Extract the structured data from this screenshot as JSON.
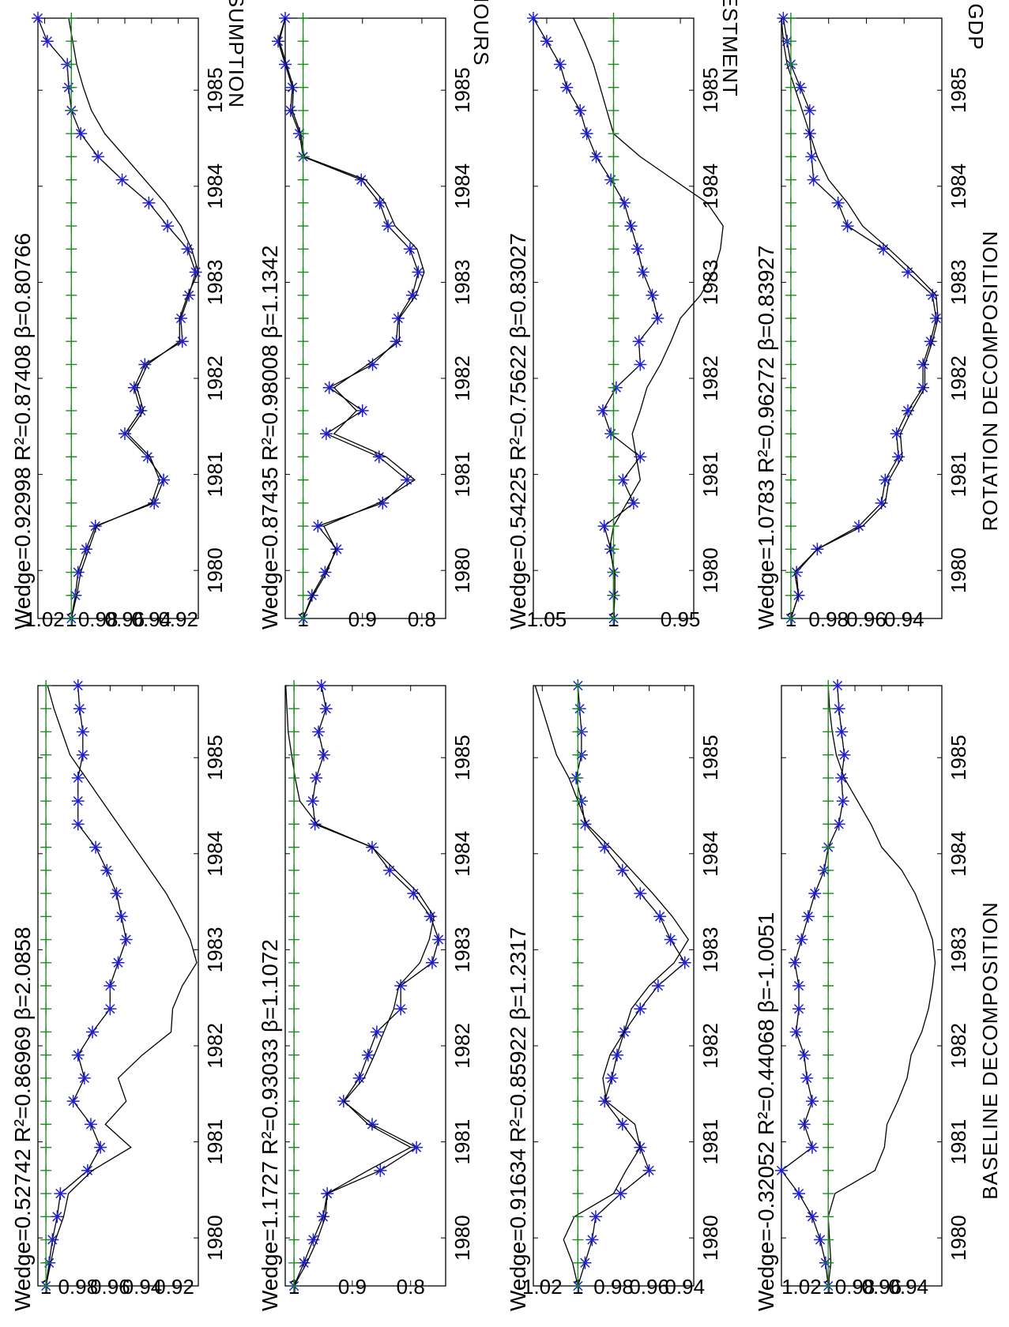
{
  "charts": {
    "baseline": {
      "xlabel": "BASELINE DECOMPOSITION",
      "panels": [
        {
          "ylabel": "GDP",
          "wedge": "0.52742",
          "r2": "0.86969",
          "beta": "2.0858"
        },
        {
          "ylabel": "INVESTMENT",
          "wedge": "1.1727",
          "r2": "0.93033",
          "beta": "1.1072"
        },
        {
          "ylabel": "HOURS",
          "wedge": "0.91634",
          "r2": "0.85922",
          "beta": "1.2317"
        },
        {
          "ylabel": "CONSUMPTION",
          "wedge": "-0.32052",
          "r2": "0.44068",
          "beta": "-1.0051"
        }
      ]
    },
    "rotation": {
      "xlabel": "ROTATION DECOMPOSITION",
      "panels": [
        {
          "wedge": "0.92998",
          "r2": "0.87408",
          "beta": "0.80766"
        },
        {
          "wedge": "0.87435",
          "r2": "0.98008",
          "beta": "1.1342"
        },
        {
          "wedge": "0.54225",
          "r2": "0.75622",
          "beta": "0.83027"
        },
        {
          "wedge": "1.0783",
          "r2": "0.96272",
          "beta": "0.83927"
        }
      ]
    }
  },
  "chart_data": [
    {
      "type": "line",
      "ylabel": "GDP",
      "xlabel": "BASELINE DECOMPOSITION",
      "x_ticks": [
        "1980",
        "1981",
        "1982",
        "1983",
        "1984",
        "1985"
      ],
      "xlim": [
        1979.5,
        1985.75
      ],
      "y_ticks": [
        "1",
        "0.98",
        "0.96",
        "0.94",
        "0.92"
      ],
      "ylim": [
        0.905,
        1.005
      ],
      "series": [
        {
          "style": "star-line",
          "values": [
            1,
            0.998,
            0.996,
            0.993,
            0.991,
            0.974,
            0.966,
            0.972,
            0.983,
            0.976,
            0.98,
            0.971,
            0.96,
            0.96,
            0.955,
            0.95,
            0.953,
            0.956,
            0.962,
            0.969,
            0.98,
            0.98,
            0.98,
            0.977,
            0.977,
            0.979,
            0.98
          ]
        },
        {
          "style": "line",
          "values": [
            1,
            0.997,
            0.994,
            0.989,
            0.986,
            0.971,
            0.947,
            0.963,
            0.95,
            0.955,
            0.94,
            0.922,
            0.921,
            0.915,
            0.906,
            0.91,
            0.917,
            0.925,
            0.935,
            0.945,
            0.955,
            0.965,
            0.975,
            0.985,
            0.99,
            0.995,
            0.999
          ]
        },
        {
          "style": "green-plus",
          "values": [
            1,
            1,
            1,
            1,
            1,
            1,
            1,
            1,
            1,
            1,
            1,
            1,
            1,
            1,
            1,
            1,
            1,
            1,
            1,
            1,
            1,
            1,
            1,
            1,
            1,
            1,
            1
          ]
        }
      ]
    },
    {
      "type": "line",
      "ylabel": "INVESTMENT",
      "xlabel": "BASELINE DECOMPOSITION",
      "x_ticks": [
        "1980",
        "1981",
        "1982",
        "1983",
        "1984",
        "1985"
      ],
      "xlim": [
        1979.5,
        1985.75
      ],
      "y_ticks": [
        "1",
        "0.9",
        "0.8"
      ],
      "ylim": [
        0.74,
        1.015
      ],
      "series": [
        {
          "style": "star-line",
          "values": [
            1,
            0.983,
            0.967,
            0.95,
            0.943,
            0.852,
            0.79,
            0.866,
            0.915,
            0.888,
            0.873,
            0.858,
            0.817,
            0.817,
            0.763,
            0.752,
            0.766,
            0.795,
            0.836,
            0.866,
            0.964,
            0.968,
            0.962,
            0.949,
            0.958,
            0.945,
            0.953
          ]
        },
        {
          "style": "line",
          "values": [
            1,
            0.978,
            0.96,
            0.946,
            0.943,
            0.873,
            0.8,
            0.873,
            0.914,
            0.88,
            0.862,
            0.846,
            0.829,
            0.82,
            0.784,
            0.768,
            0.76,
            0.786,
            0.826,
            0.866,
            0.96,
            0.99,
            0.998,
            1.004,
            1.01,
            1.012,
            1.014
          ]
        },
        {
          "style": "green-plus",
          "values": [
            1,
            1,
            1,
            1,
            1,
            1,
            1,
            1,
            1,
            1,
            1,
            1,
            1,
            1,
            1,
            1,
            1,
            1,
            1,
            1,
            1,
            1,
            1,
            1,
            1,
            1,
            1
          ]
        }
      ]
    },
    {
      "type": "line",
      "ylabel": "HOURS",
      "xlabel": "BASELINE DECOMPOSITION",
      "x_ticks": [
        "1980",
        "1981",
        "1982",
        "1983",
        "1984",
        "1985"
      ],
      "xlim": [
        1979.5,
        1985.75
      ],
      "y_ticks": [
        "1.02",
        "1",
        "0.98",
        "0.96",
        "0.94"
      ],
      "ylim": [
        0.935,
        1.025
      ],
      "series": [
        {
          "style": "star-line",
          "values": [
            1,
            0.996,
            0.992,
            0.99,
            0.976,
            0.96,
            0.965,
            0.975,
            0.985,
            0.981,
            0.978,
            0.974,
            0.965,
            0.955,
            0.94,
            0.948,
            0.954,
            0.965,
            0.975,
            0.985,
            0.996,
            0.998,
            1.001,
            0.998,
            0.998,
            0.999,
            1.0
          ]
        },
        {
          "style": "line",
          "values": [
            1,
            1.003,
            1.008,
            1.002,
            0.98,
            0.973,
            0.965,
            0.968,
            0.984,
            0.986,
            0.982,
            0.974,
            0.97,
            0.96,
            0.946,
            0.938,
            0.947,
            0.958,
            0.97,
            0.982,
            0.995,
            1.0,
            1.005,
            1.012,
            1.016,
            1.02,
            1.024
          ]
        },
        {
          "style": "green-plus",
          "values": [
            1,
            1,
            1,
            1,
            1,
            1,
            1,
            1,
            1,
            1,
            1,
            1,
            1,
            1,
            1,
            1,
            1,
            1,
            1,
            1,
            1,
            1,
            1,
            1,
            1,
            1,
            1
          ]
        }
      ]
    },
    {
      "type": "line",
      "ylabel": "CONSUMPTION",
      "xlabel": "BASELINE DECOMPOSITION",
      "x_ticks": [
        "1980",
        "1981",
        "1982",
        "1983",
        "1984",
        "1985"
      ],
      "xlim": [
        1979.5,
        1985.75
      ],
      "y_ticks": [
        "1.02",
        "1",
        "0.98",
        "0.96",
        "0.94"
      ],
      "ylim": [
        0.915,
        1.035
      ],
      "series": [
        {
          "style": "star-line",
          "values": [
            1,
            1.002,
            1.006,
            1.012,
            1.022,
            1.035,
            1.012,
            1.018,
            1.012,
            1.016,
            1.018,
            1.024,
            1.022,
            1.022,
            1.025,
            1.02,
            1.015,
            1.01,
            1.003,
            1.0,
            0.992,
            0.989,
            0.99,
            0.988,
            0.99,
            0.992,
            0.993
          ]
        },
        {
          "style": "line",
          "values": [
            1,
            0.998,
            0.999,
            1.0,
            0.995,
            0.965,
            0.958,
            0.956,
            0.948,
            0.941,
            0.938,
            0.93,
            0.925,
            0.922,
            0.92,
            0.922,
            0.928,
            0.935,
            0.945,
            0.96,
            0.968,
            0.978,
            0.988,
            0.994,
            0.997,
            0.999,
            1.0
          ]
        },
        {
          "style": "green-plus",
          "values": [
            1,
            1,
            1,
            1,
            1,
            1,
            1,
            1,
            1,
            1,
            1,
            1,
            1,
            1,
            1,
            1,
            1,
            1,
            1,
            1,
            1,
            1,
            1,
            1,
            1,
            1,
            1
          ]
        }
      ]
    },
    {
      "type": "line",
      "ylabel": "GDP",
      "xlabel": "ROTATION DECOMPOSITION",
      "x_ticks": [
        "1980",
        "1981",
        "1982",
        "1983",
        "1984",
        "1985"
      ],
      "xlim": [
        1979.5,
        1985.75
      ],
      "y_ticks": [
        "1.02",
        "1",
        "0.98",
        "0.96",
        "0.94",
        "0.92"
      ],
      "ylim": [
        0.905,
        1.025
      ],
      "series": [
        {
          "style": "star-line",
          "values": [
            1,
            0.997,
            0.995,
            0.989,
            0.982,
            0.938,
            0.931,
            0.943,
            0.96,
            0.948,
            0.953,
            0.945,
            0.917,
            0.918,
            0.912,
            0.907,
            0.913,
            0.928,
            0.942,
            0.962,
            0.98,
            0.993,
            1.0,
            1.002,
            1.003,
            1.018,
            1.025
          ]
        },
        {
          "style": "line",
          "values": [
            1,
            0.996,
            0.993,
            0.987,
            0.981,
            0.94,
            0.934,
            0.941,
            0.958,
            0.946,
            0.951,
            0.943,
            0.919,
            0.919,
            0.913,
            0.905,
            0.91,
            0.918,
            0.93,
            0.945,
            0.96,
            0.975,
            0.985,
            0.991,
            0.996,
            0.999,
            1.002
          ]
        },
        {
          "style": "green-plus",
          "values": [
            1,
            1,
            1,
            1,
            1,
            1,
            1,
            1,
            1,
            1,
            1,
            1,
            1,
            1,
            1,
            1,
            1,
            1,
            1,
            1,
            1,
            1,
            1,
            1,
            1,
            1,
            1
          ]
        }
      ]
    },
    {
      "type": "line",
      "ylabel": "INVESTMENT",
      "xlabel": "ROTATION DECOMPOSITION",
      "x_ticks": [
        "1980",
        "1981",
        "1982",
        "1983",
        "1984",
        "1985"
      ],
      "xlim": [
        1979.5,
        1985.75
      ],
      "y_ticks": [
        "1",
        "0.9",
        "0.8"
      ],
      "ylim": [
        0.76,
        1.03
      ],
      "series": [
        {
          "style": "star-line",
          "values": [
            1,
            0.985,
            0.963,
            0.943,
            0.975,
            0.866,
            0.825,
            0.872,
            0.961,
            0.9,
            0.956,
            0.883,
            0.843,
            0.84,
            0.816,
            0.806,
            0.82,
            0.857,
            0.871,
            0.902,
            1.0,
            1.006,
            1.021,
            1.018,
            1.03,
            1.042,
            1.03
          ]
        },
        {
          "style": "line",
          "values": [
            1,
            0.983,
            0.96,
            0.945,
            0.965,
            0.873,
            0.812,
            0.86,
            0.948,
            0.91,
            0.948,
            0.891,
            0.838,
            0.838,
            0.81,
            0.796,
            0.808,
            0.845,
            0.862,
            0.895,
            0.998,
            1.004,
            1.018,
            1.016,
            1.028,
            1.04,
            1.03
          ]
        },
        {
          "style": "green-plus",
          "values": [
            1,
            1,
            1,
            1,
            1,
            1,
            1,
            1,
            1,
            1,
            1,
            1,
            1,
            1,
            1,
            1,
            1,
            1,
            1,
            1,
            1,
            1,
            1,
            1,
            1,
            1,
            1
          ]
        }
      ]
    },
    {
      "type": "line",
      "ylabel": "HOURS",
      "xlabel": "ROTATION DECOMPOSITION",
      "x_ticks": [
        "1980",
        "1981",
        "1982",
        "1983",
        "1984",
        "1985"
      ],
      "xlim": [
        1979.5,
        1985.75
      ],
      "y_ticks": [
        "1.05",
        "1",
        "0.95"
      ],
      "ylim": [
        0.94,
        1.06
      ],
      "series": [
        {
          "style": "star-line",
          "values": [
            1,
            1,
            1,
            1.002,
            1.007,
            0.985,
            0.993,
            0.98,
            1.002,
            1.008,
            0.998,
            0.98,
            0.981,
            0.967,
            0.971,
            0.978,
            0.982,
            0.987,
            0.992,
            1.002,
            1.013,
            1.02,
            1.025,
            1.035,
            1.04,
            1.05,
            1.06
          ]
        },
        {
          "style": "line",
          "values": [
            1,
            0.999,
            0.999,
            1.003,
            1.0,
            0.99,
            0.98,
            0.983,
            0.986,
            0.98,
            0.975,
            0.965,
            0.957,
            0.95,
            0.935,
            0.925,
            0.92,
            0.918,
            0.93,
            0.955,
            0.98,
            1.0,
            1.005,
            1.01,
            1.015,
            1.022,
            1.03
          ]
        },
        {
          "style": "green-plus",
          "values": [
            1,
            1,
            1,
            1,
            1,
            1,
            1,
            1,
            1,
            1,
            1,
            1,
            1,
            1,
            1,
            1,
            1,
            1,
            1,
            1,
            1,
            1,
            1,
            1,
            1,
            1,
            1
          ]
        }
      ]
    },
    {
      "type": "line",
      "ylabel": "CONSUMPTION",
      "xlabel": "ROTATION DECOMPOSITION",
      "x_ticks": [
        "1980",
        "1981",
        "1982",
        "1983",
        "1984",
        "1985"
      ],
      "xlim": [
        1979.5,
        1985.75
      ],
      "y_ticks": [
        "1",
        "0.98",
        "0.96",
        "0.94"
      ],
      "ylim": [
        0.92,
        1.005
      ],
      "series": [
        {
          "style": "star-line",
          "values": [
            1,
            0.996,
            0.997,
            0.986,
            0.964,
            0.952,
            0.95,
            0.943,
            0.944,
            0.938,
            0.93,
            0.93,
            0.926,
            0.923,
            0.925,
            0.938,
            0.951,
            0.97,
            0.975,
            0.988,
            0.989,
            0.99,
            0.99,
            0.995,
            1.0,
            1.002,
            1.004
          ]
        },
        {
          "style": "line",
          "values": [
            1,
            0.996,
            0.998,
            0.986,
            0.962,
            0.95,
            0.948,
            0.941,
            0.942,
            0.936,
            0.929,
            0.929,
            0.925,
            0.922,
            0.923,
            0.935,
            0.948,
            0.962,
            0.97,
            0.98,
            0.986,
            0.99,
            0.994,
            0.998,
            1.002,
            1.004,
            1.005
          ]
        },
        {
          "style": "green-plus",
          "values": [
            1,
            1,
            1,
            1,
            1,
            1,
            1,
            1,
            1,
            1,
            1,
            1,
            1,
            1,
            1,
            1,
            1,
            1,
            1,
            1,
            1,
            1,
            1,
            1,
            1,
            1,
            1
          ]
        }
      ]
    }
  ]
}
